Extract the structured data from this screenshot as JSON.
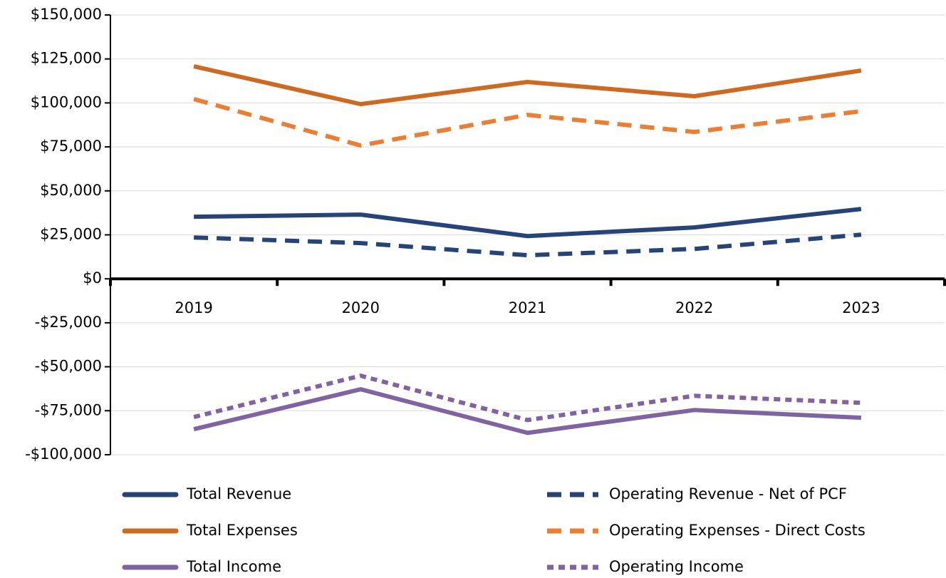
{
  "chart_data": {
    "type": "line",
    "categories": [
      "2019",
      "2020",
      "2021",
      "2022",
      "2023"
    ],
    "series": [
      {
        "name": "Total Revenue",
        "color": "#264478",
        "style": "solid",
        "values": [
          35300,
          36500,
          24300,
          29200,
          39700
        ]
      },
      {
        "name": "Operating Revenue - Net of PCF",
        "color": "#264478",
        "style": "dashed",
        "values": [
          23500,
          20300,
          13400,
          17000,
          25100
        ]
      },
      {
        "name": "Total Expenses",
        "color": "#d0691d",
        "style": "solid",
        "values": [
          120800,
          99300,
          111900,
          103800,
          118400
        ]
      },
      {
        "name": "Operating Expenses - Direct Costs",
        "color": "#ed7d31",
        "style": "dashed",
        "values": [
          102200,
          75800,
          93200,
          83500,
          95300
        ]
      },
      {
        "name": "Total Income",
        "color": "#8064a2",
        "style": "solid",
        "values": [
          -85500,
          -62800,
          -87600,
          -74600,
          -79000
        ]
      },
      {
        "name": "Operating Income",
        "color": "#8064a2",
        "style": "dotted",
        "values": [
          -78600,
          -55100,
          -80300,
          -66500,
          -70500
        ]
      }
    ],
    "ylim": [
      -100000,
      150000
    ],
    "yticks": [
      {
        "value": -100000,
        "label": "-$100,000"
      },
      {
        "value": -75000,
        "label": "-$75,000"
      },
      {
        "value": -50000,
        "label": "-$50,000"
      },
      {
        "value": -25000,
        "label": "-$25,000"
      },
      {
        "value": 0,
        "label": "$0"
      },
      {
        "value": 25000,
        "label": "$25,000"
      },
      {
        "value": 50000,
        "label": "$50,000"
      },
      {
        "value": 75000,
        "label": "$75,000"
      },
      {
        "value": 100000,
        "label": "$100,000"
      },
      {
        "value": 125000,
        "label": "$125,000"
      },
      {
        "value": 150000,
        "label": "$150,000"
      }
    ],
    "grid": true,
    "legend": "bottom"
  }
}
